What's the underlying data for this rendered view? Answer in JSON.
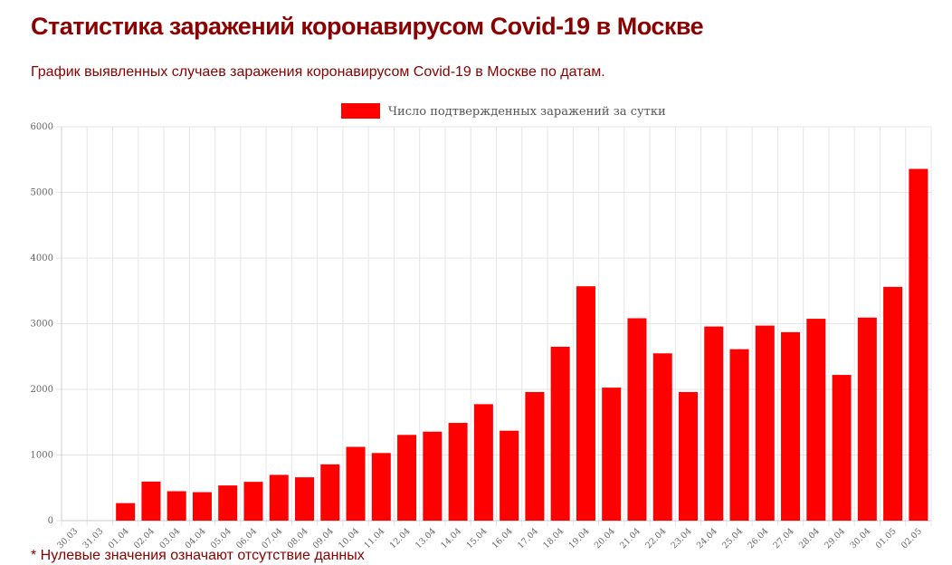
{
  "header": {
    "title": "Статистика заражений коронавирусом Covid-19 в Москве",
    "subtitle": "График выявленных случаев заражения коронавирусом Covid-19 в Москве по датам."
  },
  "footnote": "* Нулевые значения означают отсутствие данных",
  "colors": {
    "title": "#8b0000",
    "bar": "#ff0000",
    "grid": "#e6e6e6",
    "tick_text": "#666666"
  },
  "chart_data": {
    "type": "bar",
    "title": "",
    "xlabel": "",
    "ylabel": "",
    "ylim": [
      0,
      6000
    ],
    "yticks": [
      0,
      1000,
      2000,
      3000,
      4000,
      5000,
      6000
    ],
    "grid": true,
    "legend_position": "top-center",
    "categories": [
      "30.03",
      "31.03",
      "01.04",
      "02.04",
      "03.04",
      "04.04",
      "05.04",
      "06.04",
      "07.04",
      "08.04",
      "09.04",
      "10.04",
      "11.04",
      "12.04",
      "13.04",
      "14.04",
      "15.04",
      "16.04",
      "17.04",
      "18.04",
      "19.04",
      "20.04",
      "21.04",
      "22.04",
      "23.04",
      "24.04",
      "25.04",
      "26.04",
      "27.04",
      "28.04",
      "29.04",
      "30.04",
      "01.05",
      "02.05"
    ],
    "series": [
      {
        "name": "Число подтвержденных заражений за сутки",
        "color": "#ff0000",
        "values": [
          0,
          0,
          267,
          595,
          448,
          434,
          536,
          591,
          697,
          660,
          857,
          1124,
          1030,
          1306,
          1355,
          1489,
          1774,
          1370,
          1959,
          2649,
          3570,
          2026,
          3083,
          2548,
          1959,
          2957,
          2612,
          2971,
          2871,
          3075,
          2220,
          3093,
          3561,
          5358
        ]
      }
    ]
  }
}
